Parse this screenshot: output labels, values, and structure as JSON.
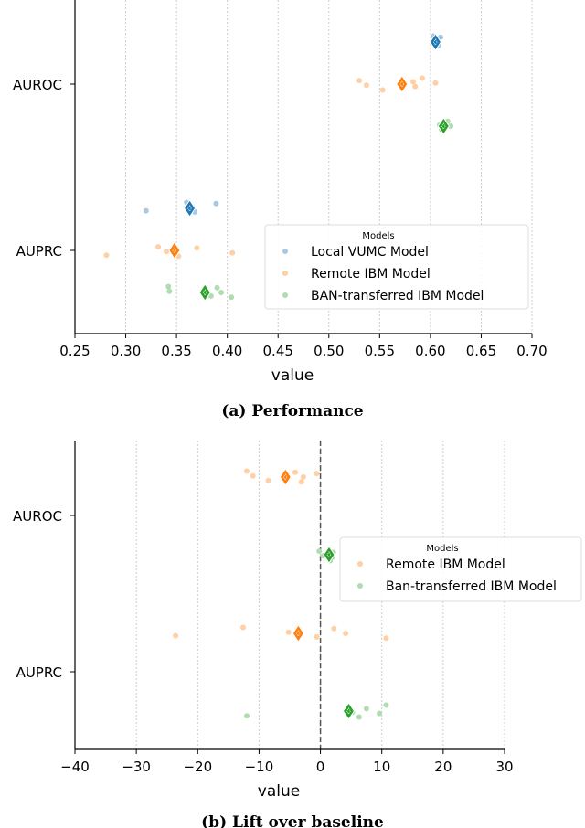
{
  "chart_data": [
    {
      "type": "scatter",
      "title": "",
      "caption": "(a) Performance",
      "xlabel": "value",
      "ylabel": "",
      "xlim": [
        0.25,
        0.7
      ],
      "xticks": [
        "0.25",
        "0.30",
        "0.35",
        "0.40",
        "0.45",
        "0.50",
        "0.55",
        "0.60",
        "0.65",
        "0.70"
      ],
      "categories": [
        "AUROC",
        "AUPRC"
      ],
      "grid": "vertical dotted",
      "legend": {
        "title": "Models",
        "placement": "bottom-right"
      },
      "series": [
        {
          "name": "Local VUMC Model",
          "color": "#1f77b4",
          "mean": [
            0.605,
            0.363
          ],
          "points": [
            [
              0.603,
              0.606,
              0.608,
              0.61,
              0.604
            ],
            [
              0.32,
              0.36,
              0.365,
              0.368,
              0.389
            ]
          ]
        },
        {
          "name": "Remote IBM Model",
          "color": "#ff7f0e",
          "mean": [
            0.572,
            0.348
          ],
          "points": [
            [
              0.53,
              0.537,
              0.553,
              0.583,
              0.585,
              0.592,
              0.605
            ],
            [
              0.281,
              0.332,
              0.34,
              0.352,
              0.37,
              0.405
            ]
          ]
        },
        {
          "name": "BAN-transferred IBM Model",
          "color": "#2ca02c",
          "mean": [
            0.613,
            0.378
          ],
          "points": [
            [
              0.609,
              0.611,
              0.617,
              0.62
            ],
            [
              0.342,
              0.343,
              0.384,
              0.39,
              0.394,
              0.404
            ]
          ]
        }
      ]
    },
    {
      "type": "scatter",
      "title": "",
      "caption": "(b) Lift over baseline",
      "xlabel": "value",
      "ylabel": "",
      "xlim": [
        -40,
        30
      ],
      "xticks": [
        "−40",
        "−30",
        "−20",
        "−10",
        "0",
        "10",
        "20",
        "30"
      ],
      "categories": [
        "AUROC",
        "AUPRC"
      ],
      "grid": "vertical dotted",
      "reference_line": 0,
      "legend": {
        "title": "Models",
        "placement": "center-right"
      },
      "series": [
        {
          "name": "Remote IBM Model",
          "color": "#ff7f0e",
          "mean": [
            -5.7,
            -3.6
          ],
          "points": [
            [
              -12,
              -11,
              -8.5,
              -4.1,
              -2.8,
              -3.1,
              -0.6
            ],
            [
              -23.6,
              -12.6,
              -5.2,
              -0.6,
              2.2,
              4.1,
              10.7
            ]
          ]
        },
        {
          "name": "Ban-transferred IBM Model",
          "color": "#2ca02c",
          "mean": [
            1.4,
            4.6
          ],
          "points": [
            [
              -0.2,
              0.4,
              1.6,
              2.1,
              2.0
            ],
            [
              -12,
              4.7,
              5.2,
              6.3,
              7.5,
              9.6,
              10.7
            ]
          ]
        }
      ]
    }
  ]
}
